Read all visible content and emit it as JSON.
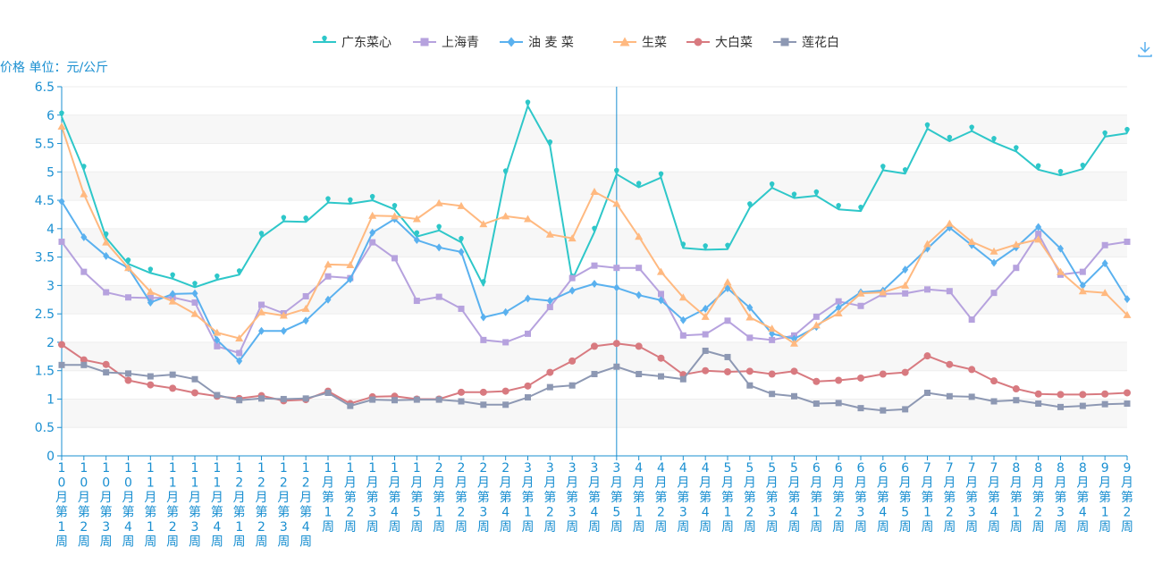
{
  "chart_data": {
    "type": "line",
    "unit_label": "价格 单位：元/公斤",
    "ylim": [
      0,
      6.5
    ],
    "ytick_step": 0.5,
    "grid": true,
    "legend_position": "top-center",
    "categories": [
      "10月第1周",
      "10月第2周",
      "10月第3周",
      "10月第4周",
      "11月第1周",
      "11月第2周",
      "11月第3周",
      "11月第4周",
      "12月第1周",
      "12月第2周",
      "12月第3周",
      "12月第4周",
      "1月第1周",
      "1月第2周",
      "1月第3周",
      "1月第4周",
      "1月第5周",
      "2月第1周",
      "2月第2周",
      "2月第3周",
      "2月第4周",
      "3月第1周",
      "3月第2周",
      "3月第3周",
      "3月第4周",
      "3月第5周",
      "4月第1周",
      "4月第2周",
      "4月第3周",
      "4月第4周",
      "5月第1周",
      "5月第2周",
      "5月第3周",
      "5月第4周",
      "6月第1周",
      "6月第2周",
      "6月第3周",
      "6月第4周",
      "6月第5周",
      "7月第1周",
      "7月第2周",
      "7月第3周",
      "7月第4周",
      "8月第1周",
      "8月第2周",
      "8月第3周",
      "8月第4周",
      "9月第1周",
      "9月第2周"
    ],
    "series": [
      {
        "name": "广东菜心",
        "color": "#2ec7c9",
        "marker": "pin",
        "values": [
          5.97,
          5.03,
          3.84,
          3.38,
          3.22,
          3.12,
          2.97,
          3.1,
          3.19,
          3.85,
          4.13,
          4.12,
          4.46,
          4.44,
          4.5,
          4.34,
          3.86,
          3.97,
          3.76,
          3.0,
          4.95,
          6.16,
          5.46,
          3.1,
          3.94,
          4.96,
          4.73,
          4.9,
          3.66,
          3.63,
          3.64,
          4.37,
          4.72,
          4.54,
          4.58,
          4.34,
          4.31,
          5.03,
          4.97,
          5.76,
          5.54,
          5.72,
          5.52,
          5.36,
          5.04,
          4.94,
          5.05,
          5.62,
          5.68
        ]
      },
      {
        "name": "上海青",
        "color": "#b6a2de",
        "marker": "square",
        "values": [
          3.77,
          3.24,
          2.88,
          2.79,
          2.78,
          2.79,
          2.7,
          1.93,
          1.81,
          2.66,
          2.51,
          2.81,
          3.16,
          3.13,
          3.76,
          3.48,
          2.73,
          2.8,
          2.59,
          2.04,
          2.0,
          2.15,
          2.62,
          3.13,
          3.35,
          3.31,
          3.31,
          2.85,
          2.12,
          2.14,
          2.38,
          2.08,
          2.04,
          2.12,
          2.45,
          2.72,
          2.64,
          2.85,
          2.86,
          2.93,
          2.9,
          2.4,
          2.87,
          3.31,
          3.91,
          3.19,
          3.24,
          3.71,
          3.77
        ]
      },
      {
        "name": "油 麦 菜",
        "color": "#5ab1ef",
        "marker": "diamond",
        "values": [
          4.48,
          3.85,
          3.52,
          3.31,
          2.7,
          2.85,
          2.86,
          2.04,
          1.67,
          2.2,
          2.2,
          2.38,
          2.75,
          3.11,
          3.93,
          4.17,
          3.8,
          3.67,
          3.59,
          2.44,
          2.53,
          2.77,
          2.73,
          2.91,
          3.03,
          2.96,
          2.83,
          2.74,
          2.39,
          2.59,
          2.95,
          2.61,
          2.15,
          2.06,
          2.27,
          2.61,
          2.88,
          2.91,
          3.28,
          3.65,
          4.02,
          3.71,
          3.4,
          3.67,
          4.03,
          3.65,
          3.0,
          3.39,
          2.76
        ]
      },
      {
        "name": "生菜",
        "color": "#ffb980",
        "marker": "triangle",
        "values": [
          5.8,
          4.61,
          3.76,
          3.31,
          2.89,
          2.72,
          2.5,
          2.17,
          2.07,
          2.53,
          2.47,
          2.59,
          3.37,
          3.36,
          4.23,
          4.22,
          4.17,
          4.45,
          4.4,
          4.08,
          4.22,
          4.17,
          3.9,
          3.83,
          4.65,
          4.44,
          3.86,
          3.24,
          2.79,
          2.45,
          3.06,
          2.44,
          2.24,
          1.98,
          2.3,
          2.51,
          2.86,
          2.88,
          3.0,
          3.73,
          4.09,
          3.77,
          3.6,
          3.72,
          3.81,
          3.24,
          2.9,
          2.87,
          2.48
        ]
      },
      {
        "name": "大白菜",
        "color": "#d87a80",
        "marker": "circle",
        "values": [
          1.96,
          1.69,
          1.61,
          1.33,
          1.25,
          1.19,
          1.11,
          1.05,
          1.01,
          1.06,
          0.97,
          0.99,
          1.14,
          0.92,
          1.04,
          1.05,
          1.0,
          1.0,
          1.12,
          1.12,
          1.14,
          1.23,
          1.47,
          1.67,
          1.93,
          1.98,
          1.93,
          1.72,
          1.43,
          1.5,
          1.48,
          1.49,
          1.44,
          1.49,
          1.31,
          1.33,
          1.37,
          1.44,
          1.47,
          1.76,
          1.61,
          1.52,
          1.32,
          1.18,
          1.09,
          1.08,
          1.08,
          1.09,
          1.11
        ]
      },
      {
        "name": "莲花白",
        "color": "#8d98b3",
        "marker": "square",
        "values": [
          1.6,
          1.6,
          1.47,
          1.45,
          1.4,
          1.43,
          1.35,
          1.07,
          0.98,
          1.01,
          1.0,
          1.01,
          1.11,
          0.88,
          0.99,
          0.98,
          0.99,
          0.99,
          0.96,
          0.9,
          0.9,
          1.03,
          1.21,
          1.24,
          1.44,
          1.57,
          1.44,
          1.4,
          1.35,
          1.85,
          1.74,
          1.24,
          1.09,
          1.05,
          0.92,
          0.93,
          0.84,
          0.8,
          0.82,
          1.11,
          1.05,
          1.04,
          0.96,
          0.98,
          0.92,
          0.86,
          0.88,
          0.91,
          0.92
        ]
      }
    ],
    "highlight_category": "3月第5周"
  },
  "toolbar": {
    "download_icon": "download-icon"
  }
}
